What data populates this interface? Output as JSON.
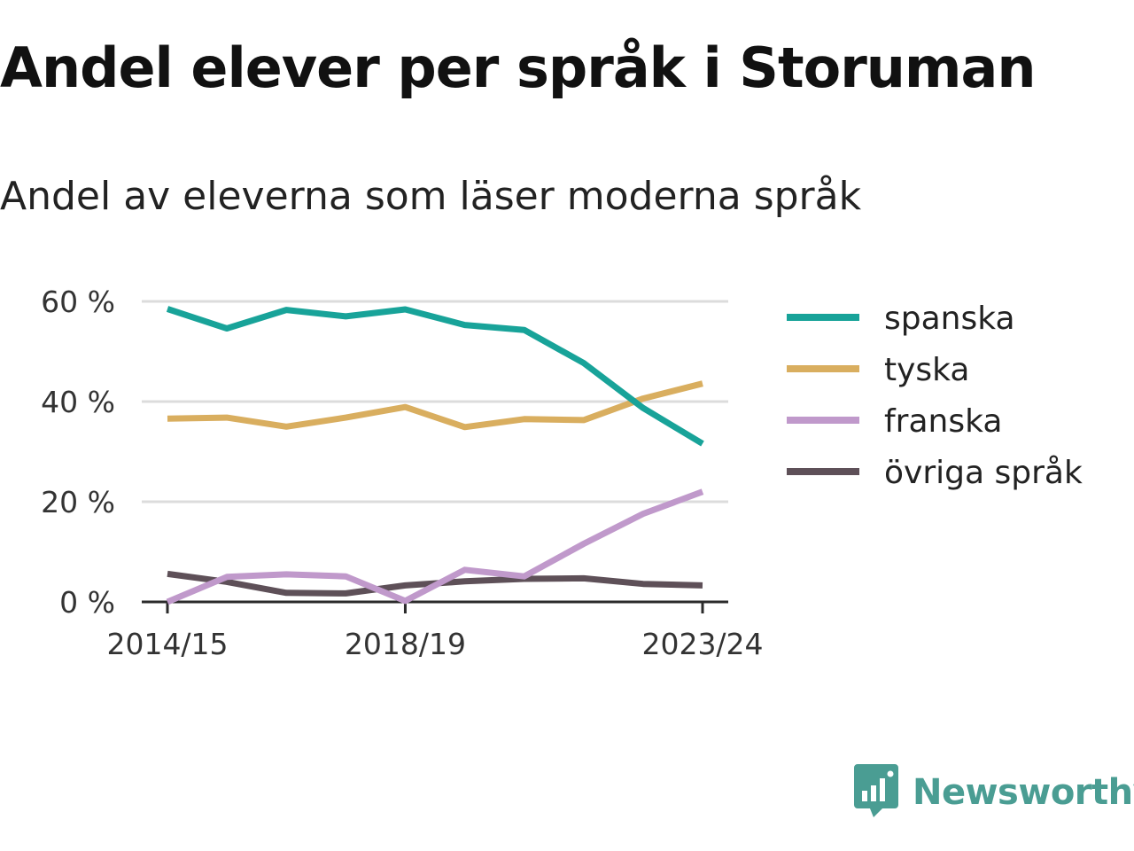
{
  "title": "Andel elever per språk i Storuman",
  "subtitle": "Andel av eleverna som läser moderna språk",
  "brand": {
    "name": "Newsworthy",
    "icon": "newsworthy-logo-icon",
    "color": "#4a9d93"
  },
  "chart_data": {
    "type": "line",
    "title": "Andel elever per språk i Storuman",
    "subtitle": "Andel av eleverna som läser moderna språk",
    "x": [
      "2014/15",
      "2015/16",
      "2016/17",
      "2017/18",
      "2018/19",
      "2019/20",
      "2020/21",
      "2021/22",
      "2022/23",
      "2023/24"
    ],
    "x_tick_labels": [
      "2014/15",
      "2018/19",
      "2023/24"
    ],
    "ylim": [
      0,
      60
    ],
    "y_ticks": [
      0,
      20,
      40,
      60
    ],
    "y_tick_labels": [
      "0 %",
      "20 %",
      "40 %",
      "60 %"
    ],
    "grid": true,
    "legend_position": "right",
    "series": [
      {
        "name": "spanska",
        "color": "#18a399",
        "values": [
          58.5,
          54.6,
          58.3,
          57.0,
          58.4,
          55.3,
          54.3,
          47.7,
          38.7,
          31.6
        ]
      },
      {
        "name": "tyska",
        "color": "#d9ae5f",
        "values": [
          36.6,
          36.8,
          35.0,
          36.8,
          38.9,
          34.9,
          36.5,
          36.3,
          40.6,
          43.6
        ]
      },
      {
        "name": "franska",
        "color": "#c099cb",
        "values": [
          0.0,
          5.0,
          5.5,
          5.1,
          0.2,
          6.4,
          5.1,
          11.6,
          17.6,
          22.0
        ]
      },
      {
        "name": "övriga språk",
        "color": "#5e5058",
        "values": [
          5.6,
          4.0,
          1.8,
          1.7,
          3.3,
          4.1,
          4.6,
          4.7,
          3.6,
          3.3
        ]
      }
    ]
  }
}
